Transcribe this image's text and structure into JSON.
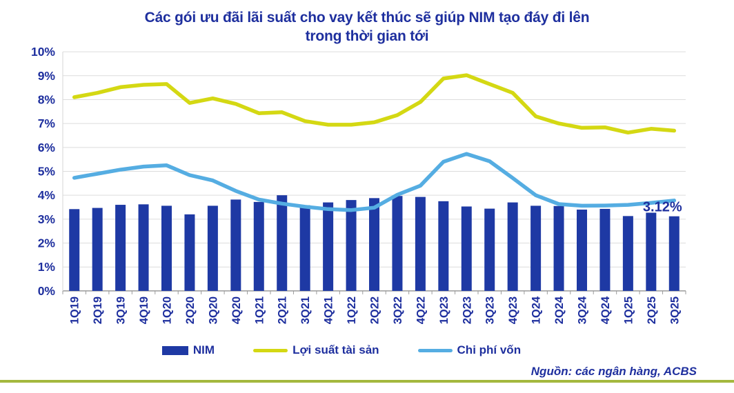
{
  "title": {
    "line1": "Các gói ưu đãi lãi suất cho vay kết thúc sẽ giúp NIM tạo đáy đi lên",
    "line2": "trong thời gian tới"
  },
  "source": "Nguồn:  các ngân hàng, ACBS",
  "colors": {
    "text_navy": "#1e2f9e",
    "bar_navy": "#1e39a4",
    "asset_yield_yellow": "#d4d813",
    "cost_of_funds_blue": "#55ade2",
    "gridline_gray": "#dcdcdc",
    "axis_gray": "#9a9a9a",
    "divider_olive": "#a4b83e"
  },
  "chart_data": {
    "type": "combo",
    "title": "Các gói ưu đãi lãi suất cho vay kết thúc sẽ giúp NIM tạo đáy đi lên trong thời gian tới",
    "categories": [
      "1Q19",
      "2Q19",
      "3Q19",
      "4Q19",
      "1Q20",
      "2Q20",
      "3Q20",
      "4Q20",
      "1Q21",
      "2Q21",
      "3Q21",
      "4Q21",
      "1Q22",
      "2Q22",
      "3Q22",
      "4Q22",
      "1Q23",
      "2Q23",
      "3Q23",
      "4Q23",
      "1Q24",
      "2Q24",
      "3Q24",
      "4Q24",
      "1Q25",
      "2Q25",
      "3Q25"
    ],
    "series": [
      {
        "name": "NIM",
        "type": "bar",
        "color": "#1e39a4",
        "values": [
          3.42,
          3.47,
          3.6,
          3.62,
          3.56,
          3.2,
          3.56,
          3.82,
          3.72,
          4.0,
          3.58,
          3.7,
          3.8,
          3.88,
          3.97,
          3.93,
          3.75,
          3.53,
          3.44,
          3.7,
          3.56,
          3.55,
          3.4,
          3.43,
          3.13,
          3.27,
          3.12
        ]
      },
      {
        "name": "Lợi suất tài sản",
        "type": "line",
        "color": "#d4d813",
        "values": [
          8.1,
          8.28,
          8.52,
          8.62,
          8.65,
          7.86,
          8.05,
          7.82,
          7.43,
          7.47,
          7.1,
          6.95,
          6.95,
          7.05,
          7.35,
          7.9,
          8.88,
          9.02,
          8.65,
          8.28,
          7.3,
          7.0,
          6.82,
          6.84,
          6.62,
          6.78,
          6.7
        ]
      },
      {
        "name": "Chi phí vốn",
        "type": "line",
        "color": "#55ade2",
        "values": [
          4.73,
          4.9,
          5.07,
          5.2,
          5.25,
          4.84,
          4.62,
          4.18,
          3.82,
          3.65,
          3.52,
          3.42,
          3.38,
          3.48,
          4.02,
          4.4,
          5.4,
          5.73,
          5.42,
          4.72,
          4.0,
          3.63,
          3.56,
          3.57,
          3.6,
          3.68,
          3.78
        ]
      }
    ],
    "xlabel": "",
    "ylabel": "",
    "ylim": [
      0,
      10
    ],
    "ytick_step": 1,
    "ytick_suffix": "%",
    "grid": true,
    "legend_position": "bottom",
    "annotation": {
      "text": "3.12%",
      "series": "NIM",
      "category": "3Q25"
    }
  }
}
